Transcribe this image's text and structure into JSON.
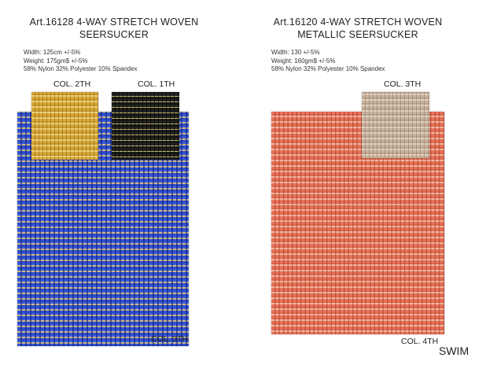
{
  "left": {
    "title_line1": "Art.16128  4-WAY STRETCH WOVEN",
    "title_line2": "SEERSUCKER",
    "width": "Width: 125cm +/-5%",
    "weight": "Weight: 175gm$ +/-5%",
    "composition": "58% Nylon 32% Polyester 10% Spandex",
    "swatch_labels": {
      "yellow": "COL. 2TH",
      "black": "COL. 1TH",
      "blue": "COL. 3TH"
    }
  },
  "right": {
    "title_line1": "Art.16120  4-WAY STRETCH WOVEN",
    "title_line2": "METALLIC SEERSUCKER",
    "width": "Width: 130 +/-5%",
    "weight": "Weight: 160gm$ +/-5%",
    "composition": "58% Nylon 32% Polyester 10% Spandex",
    "swatch_labels": {
      "beige": "COL. 3TH",
      "orange": "COL. 4TH"
    }
  },
  "footer": {
    "category": "SWIM"
  },
  "colors": {
    "blue": "#3a5ee0",
    "yellow": "#d7a83a",
    "black": "#1a1a16",
    "orange": "#e8735a",
    "beige": "#c8b29e"
  }
}
